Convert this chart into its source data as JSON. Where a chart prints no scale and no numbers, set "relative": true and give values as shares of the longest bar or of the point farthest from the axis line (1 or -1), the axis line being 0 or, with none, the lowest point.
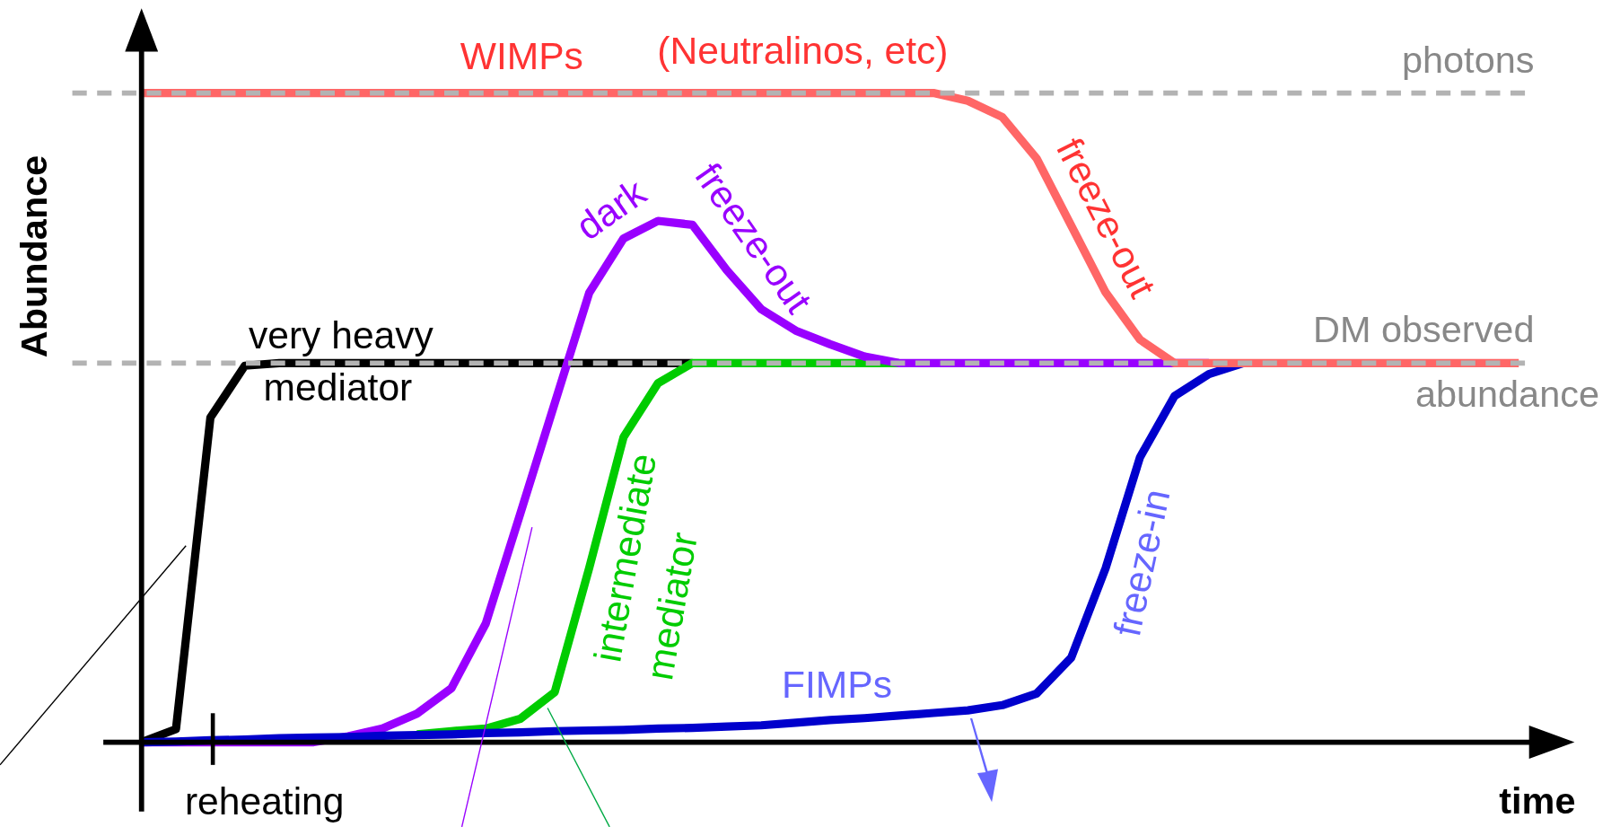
{
  "chart_data": {
    "type": "line",
    "relative": true,
    "xlabel": "time",
    "ylabel": "Abundance",
    "marker": "none",
    "line_style": "solid",
    "categories": [
      null,
      null,
      null,
      null,
      null,
      null,
      null,
      null,
      null,
      null,
      null,
      null,
      null,
      null,
      null,
      null,
      null,
      null,
      null,
      null,
      null,
      null,
      null,
      null,
      null,
      null,
      null,
      null,
      null,
      null,
      null,
      null,
      null,
      null,
      null,
      null,
      null,
      null,
      null,
      null,
      null
    ],
    "series": [
      {
        "color": "#000000",
        "values": [
          0,
          0.02,
          0.5,
          0.58,
          0.584,
          0.584,
          0.584,
          0.584,
          0.584,
          0.584,
          0.584,
          0.584,
          0.584,
          0.584,
          0.584,
          0.584,
          0.584,
          null,
          null,
          null,
          null,
          null,
          null,
          null,
          null,
          null,
          null,
          null,
          null,
          null,
          null,
          null,
          null,
          null,
          null,
          null,
          null,
          null,
          null,
          null,
          null
        ]
      },
      {
        "color": "#00cc00",
        "values": [
          null,
          null,
          null,
          null,
          null,
          null,
          null,
          null,
          0.012,
          0.017,
          0.021,
          0.036,
          0.077,
          0.268,
          0.47,
          0.553,
          0.584,
          0.584,
          0.584,
          0.584,
          0.584,
          0.584,
          0.584,
          null,
          null,
          null,
          null,
          null,
          null,
          null,
          null,
          null,
          null,
          null,
          null,
          null,
          null,
          null,
          null,
          null,
          null
        ]
      },
      {
        "color": "#9900ff",
        "values": [
          0,
          0,
          0,
          0,
          0,
          0,
          0.009,
          0.021,
          0.044,
          0.083,
          0.183,
          0.352,
          0.522,
          0.692,
          0.776,
          0.803,
          0.797,
          0.727,
          0.667,
          0.634,
          0.613,
          0.594,
          0.584,
          0.584,
          0.584,
          0.584,
          0.584,
          0.584,
          0.584,
          0.584,
          0.584,
          0.584,
          null,
          null,
          null,
          null,
          null,
          null,
          null,
          null,
          null
        ]
      },
      {
        "color": "#0000cc",
        "values": [
          0,
          0.001,
          0.003,
          0.004,
          0.006,
          0.007,
          0.008,
          0.01,
          0.011,
          0.012,
          0.014,
          0.015,
          0.017,
          0.018,
          0.019,
          0.021,
          0.022,
          0.024,
          0.026,
          0.03,
          0.034,
          0.037,
          0.041,
          0.045,
          0.049,
          0.057,
          0.075,
          0.13,
          0.268,
          0.439,
          0.533,
          0.567,
          0.584,
          null,
          null,
          null,
          null,
          null,
          null,
          null,
          null
        ]
      },
      {
        "color": "#ff6666",
        "values": [
          1,
          1,
          1,
          1,
          1,
          1,
          1,
          1,
          1,
          1,
          1,
          1,
          1,
          1,
          1,
          1,
          1,
          1,
          1,
          1,
          1,
          1,
          1,
          1,
          0.988,
          0.963,
          0.899,
          0.796,
          0.693,
          0.62,
          0.584,
          0.584,
          0.584,
          0.584,
          0.584,
          0.584,
          0.584,
          0.584,
          0.584,
          0.584,
          0.584
        ]
      }
    ],
    "ref_lines": [
      {
        "axis": "y",
        "value": 1,
        "label": "photons",
        "color": "#b3b3b3",
        "line_style": "dashed"
      },
      {
        "axis": "y",
        "value": 0.584,
        "label": "DM observed abundance",
        "color": "#b3b3b3",
        "line_style": "dashed"
      }
    ],
    "annotations": [
      "WIMPs",
      "(Neutralinos, etc)",
      "dark",
      "freeze-out",
      "freeze-out",
      "very heavy",
      "mediator",
      "intermediate",
      "mediator",
      "freeze-in",
      "FIMPs",
      "reheating"
    ]
  }
}
